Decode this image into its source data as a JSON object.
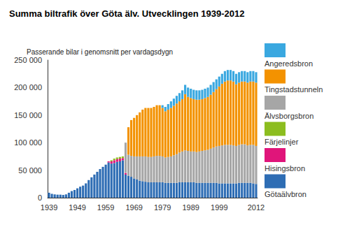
{
  "chart_data": {
    "type": "bar",
    "stacked": true,
    "title": "Summa biltrafik över Göta älv. Utvecklingen 1939-2012",
    "subtitle": "Passerande bilar i genomsnitt per vardagsdygn",
    "categories": [
      "1939",
      null,
      null,
      null,
      null,
      null,
      null,
      null,
      null,
      null,
      "1949",
      null,
      null,
      null,
      null,
      null,
      null,
      null,
      null,
      null,
      "1959",
      null,
      null,
      null,
      null,
      null,
      null,
      null,
      null,
      null,
      "1969",
      null,
      null,
      null,
      null,
      null,
      null,
      null,
      null,
      null,
      "1979",
      null,
      null,
      null,
      null,
      null,
      null,
      null,
      null,
      null,
      "1989",
      null,
      null,
      null,
      null,
      null,
      null,
      null,
      null,
      null,
      "1999",
      null,
      null,
      null,
      null,
      null,
      null,
      null,
      null,
      null,
      null,
      null,
      null,
      "2012"
    ],
    "ylim": [
      0,
      250000
    ],
    "yticks": [
      0,
      {
        "value": 50000,
        "label": "50 000"
      },
      {
        "value": 100000,
        "label": "100 000"
      },
      {
        "value": 150000,
        "label": "150 000"
      },
      {
        "value": 200000,
        "label": "200 000"
      },
      {
        "value": 250000,
        "label": "250 000"
      }
    ],
    "grid": false,
    "legend": "right",
    "series": [
      {
        "name": "Götaälvbron",
        "color": "#2e6db4",
        "values": [
          9000,
          7000,
          6000,
          5500,
          5500,
          5000,
          6000,
          9000,
          12000,
          14000,
          17000,
          20000,
          22000,
          26000,
          32000,
          37000,
          42000,
          47000,
          52000,
          56000,
          60000,
          64000,
          62000,
          63000,
          65000,
          66000,
          68000,
          42000,
          40000,
          38000,
          35000,
          33000,
          31000,
          30000,
          29000,
          28000,
          28000,
          28000,
          28000,
          28000,
          28000,
          27000,
          27000,
          27000,
          27000,
          27000,
          28000,
          28000,
          28000,
          28000,
          28000,
          28000,
          27000,
          27000,
          27000,
          27000,
          27000,
          27000,
          27000,
          27000,
          26000,
          26000,
          26000,
          26000,
          26000,
          26000,
          26000,
          27000,
          27000,
          27000,
          27000,
          27000,
          26000,
          25000
        ]
      },
      {
        "name": "Hisingsbron",
        "color": "#e0157a",
        "values": [
          0,
          0,
          0,
          0,
          0,
          0,
          0,
          0,
          0,
          0,
          0,
          0,
          0,
          0,
          0,
          0,
          0,
          0,
          0,
          0,
          0,
          2000,
          4000,
          5000,
          5000,
          5000,
          4000,
          3000,
          0,
          0,
          0,
          0,
          0,
          0,
          0,
          0,
          0,
          0,
          0,
          0,
          0,
          0,
          0,
          0,
          0,
          0,
          0,
          0,
          0,
          0,
          0,
          0,
          0,
          0,
          0,
          0,
          0,
          0,
          0,
          0,
          0,
          0,
          0,
          0,
          0,
          0,
          0,
          0,
          0,
          0,
          0,
          0,
          0,
          0
        ]
      },
      {
        "name": "Färjelinjer",
        "color": "#8cbd1f",
        "values": [
          0,
          0,
          0,
          0,
          0,
          0,
          0,
          0,
          0,
          0,
          0,
          0,
          0,
          0,
          0,
          0,
          0,
          0,
          0,
          0,
          0,
          0,
          2000,
          3000,
          3000,
          3000,
          3000,
          0,
          0,
          0,
          0,
          0,
          0,
          0,
          0,
          0,
          0,
          0,
          0,
          0,
          0,
          0,
          0,
          0,
          0,
          0,
          0,
          0,
          0,
          0,
          0,
          0,
          0,
          0,
          0,
          0,
          0,
          0,
          0,
          0,
          0,
          0,
          0,
          0,
          0,
          0,
          0,
          0,
          0,
          0,
          0,
          0,
          0,
          0
        ]
      },
      {
        "name": "Älvsborgsbron",
        "color": "#a6a6a6",
        "values": [
          0,
          0,
          0,
          0,
          0,
          0,
          0,
          0,
          0,
          0,
          0,
          0,
          0,
          0,
          0,
          0,
          0,
          0,
          0,
          0,
          0,
          0,
          0,
          0,
          0,
          0,
          0,
          55000,
          38000,
          38000,
          40000,
          42000,
          44000,
          45000,
          46000,
          46000,
          46000,
          47000,
          48000,
          48000,
          47000,
          46000,
          47000,
          48000,
          50000,
          52000,
          54000,
          56000,
          58000,
          57000,
          56000,
          56000,
          56000,
          57000,
          58000,
          59000,
          60000,
          62000,
          64000,
          66000,
          68000,
          69000,
          70000,
          70000,
          70000,
          69000,
          68000,
          69000,
          70000,
          70000,
          68000,
          69000,
          70000,
          69000
        ]
      },
      {
        "name": "Tingstadstunneln",
        "color": "#f39200",
        "values": [
          0,
          0,
          0,
          0,
          0,
          0,
          0,
          0,
          0,
          0,
          0,
          0,
          0,
          0,
          0,
          0,
          0,
          0,
          0,
          0,
          0,
          0,
          0,
          0,
          0,
          0,
          0,
          0,
          50000,
          65000,
          70000,
          75000,
          80000,
          85000,
          88000,
          89000,
          89000,
          90000,
          92000,
          92000,
          88000,
          84000,
          86000,
          88000,
          90000,
          92000,
          93000,
          95000,
          102000,
          98000,
          97000,
          95000,
          95000,
          94000,
          94000,
          95000,
          96000,
          98000,
          101000,
          104000,
          108000,
          112000,
          115000,
          117000,
          117000,
          116000,
          112000,
          113000,
          114000,
          114000,
          114000,
          115000,
          115000,
          115000
        ]
      },
      {
        "name": "Angeredsbron",
        "color": "#3aa8e0",
        "values": [
          0,
          0,
          0,
          0,
          0,
          0,
          0,
          0,
          0,
          0,
          0,
          0,
          0,
          0,
          0,
          0,
          0,
          0,
          0,
          0,
          0,
          0,
          0,
          0,
          0,
          0,
          0,
          0,
          0,
          0,
          0,
          0,
          0,
          0,
          0,
          0,
          0,
          0,
          0,
          0,
          5000,
          8000,
          10000,
          12000,
          13000,
          14000,
          15000,
          16000,
          17000,
          17000,
          17000,
          17000,
          17000,
          17000,
          17000,
          17000,
          17000,
          18000,
          18000,
          18000,
          18000,
          18000,
          19000,
          19000,
          19000,
          19000,
          19000,
          19000,
          19000,
          19000,
          19000,
          19000,
          19000,
          19000
        ]
      }
    ]
  }
}
